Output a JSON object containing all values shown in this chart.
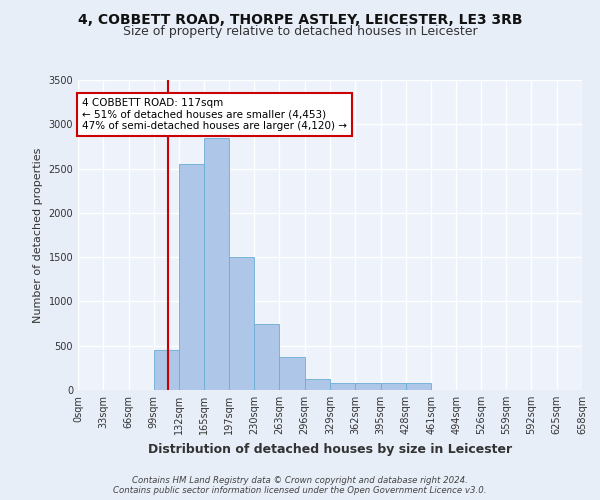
{
  "title_line1": "4, COBBETT ROAD, THORPE ASTLEY, LEICESTER, LE3 3RB",
  "title_line2": "Size of property relative to detached houses in Leicester",
  "xlabel": "Distribution of detached houses by size in Leicester",
  "ylabel": "Number of detached properties",
  "bar_color": "#aec6e8",
  "bar_edge_color": "#6aadd5",
  "vline_color": "#cc0000",
  "vline_x": 117,
  "annotation_text": "4 COBBETT ROAD: 117sqm\n← 51% of detached houses are smaller (4,453)\n47% of semi-detached houses are larger (4,120) →",
  "annotation_boxcolor": "white",
  "annotation_edgecolor": "#cc0000",
  "footer_line1": "Contains HM Land Registry data © Crown copyright and database right 2024.",
  "footer_line2": "Contains public sector information licensed under the Open Government Licence v3.0.",
  "bin_edges": [
    0,
    33,
    66,
    99,
    132,
    165,
    197,
    230,
    263,
    296,
    329,
    362,
    395,
    428,
    461,
    494,
    526,
    559,
    592,
    625,
    658
  ],
  "bin_heights": [
    0,
    0,
    0,
    450,
    2550,
    2850,
    1500,
    750,
    375,
    125,
    75,
    75,
    75,
    75,
    0,
    0,
    0,
    0,
    0,
    0
  ],
  "ylim": [
    0,
    3500
  ],
  "yticks": [
    0,
    500,
    1000,
    1500,
    2000,
    2500,
    3000,
    3500
  ],
  "bg_color": "#e8eef8",
  "plot_bg_color": "#edf2fb",
  "grid_color": "white",
  "title_fontsize": 10,
  "subtitle_fontsize": 9,
  "tick_fontsize": 7,
  "xlabel_fontsize": 9,
  "ylabel_fontsize": 8
}
